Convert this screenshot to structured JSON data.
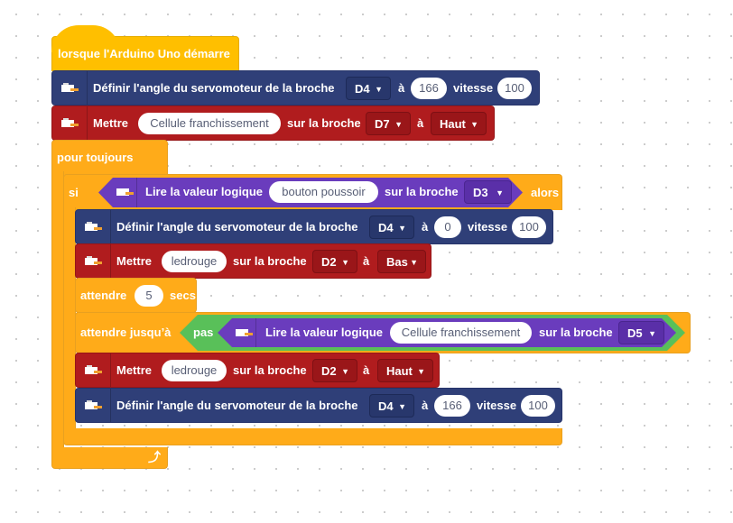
{
  "colors": {
    "event": "#ffbf00",
    "control": "#ffab19",
    "servo": "#2f3f78",
    "output": "#b01c1e",
    "input": "#6a3cbd",
    "operator": "#59c059"
  },
  "hat": {
    "label": "lorsque l'Arduino Uno démarre"
  },
  "servo1": {
    "label": "Définir l'angle du servomoteur de la broche",
    "pin": "D4",
    "a": "à",
    "angle": "166",
    "speed_label": "vitesse",
    "speed": "100"
  },
  "set1": {
    "label": "Mettre",
    "name": "Cellule franchissement",
    "on": "sur la broche",
    "pin": "D7",
    "a": "à",
    "state": "Haut"
  },
  "forever": {
    "label": "pour toujours"
  },
  "if": {
    "label": "si",
    "then": "alors",
    "cond": {
      "label": "Lire la valeur logique",
      "name": "bouton poussoir",
      "on": "sur la broche",
      "pin": "D3"
    }
  },
  "servo2": {
    "label": "Définir l'angle du servomoteur de la broche",
    "pin": "D4",
    "a": "à",
    "angle": "0",
    "speed_label": "vitesse",
    "speed": "100"
  },
  "set2": {
    "label": "Mettre",
    "name": "ledrouge",
    "on": "sur la broche",
    "pin": "D2",
    "a": "à",
    "state": "Bas"
  },
  "wait": {
    "label": "attendre",
    "value": "5",
    "unit": "secs"
  },
  "waituntil": {
    "label": "attendre jusqu’à",
    "not": "pas",
    "cond": {
      "label": "Lire la valeur logique",
      "name": "Cellule franchissement",
      "on": "sur la broche",
      "pin": "D5"
    }
  },
  "set3": {
    "label": "Mettre",
    "name": "ledrouge",
    "on": "sur la broche",
    "pin": "D2",
    "a": "à",
    "state": "Haut"
  },
  "servo3": {
    "label": "Définir l'angle du servomoteur de la broche",
    "pin": "D4",
    "a": "à",
    "angle": "166",
    "speed_label": "vitesse",
    "speed": "100"
  },
  "icons": {
    "block": "arduino-board-icon",
    "loop": "loop-arrow-icon"
  }
}
